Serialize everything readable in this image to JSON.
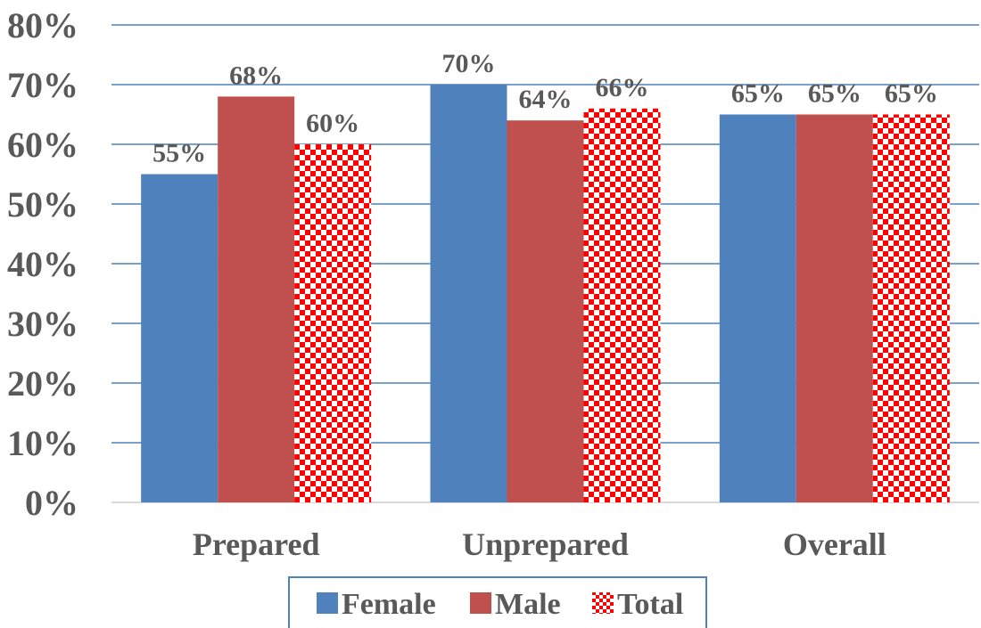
{
  "chart_data": {
    "type": "bar",
    "categories": [
      "Prepared",
      "Unprepared",
      "Overall"
    ],
    "series": [
      {
        "name": "Female",
        "values": [
          55,
          70,
          65
        ],
        "labels": [
          "55%",
          "70%",
          "65%"
        ],
        "color": "#4f81bd",
        "pattern": "solid"
      },
      {
        "name": "Male",
        "values": [
          68,
          64,
          65
        ],
        "labels": [
          "68%",
          "64%",
          "65%"
        ],
        "color": "#c0504d",
        "pattern": "solid"
      },
      {
        "name": "Total",
        "values": [
          60,
          66,
          65
        ],
        "labels": [
          "60%",
          "66%",
          "65%"
        ],
        "color": "#ff0000",
        "pattern": "checkerboard"
      }
    ],
    "ylim": [
      0,
      80
    ],
    "yticks": [
      0,
      10,
      20,
      30,
      40,
      50,
      60,
      70,
      80
    ],
    "ytick_labels": [
      "0%",
      "10%",
      "20%",
      "30%",
      "40%",
      "50%",
      "60%",
      "70%",
      "80%"
    ],
    "grid": true,
    "gridline_color": "#4f81bd",
    "legend": {
      "position": "bottom",
      "entries": [
        "Female",
        "Male",
        "Total"
      ]
    }
  }
}
